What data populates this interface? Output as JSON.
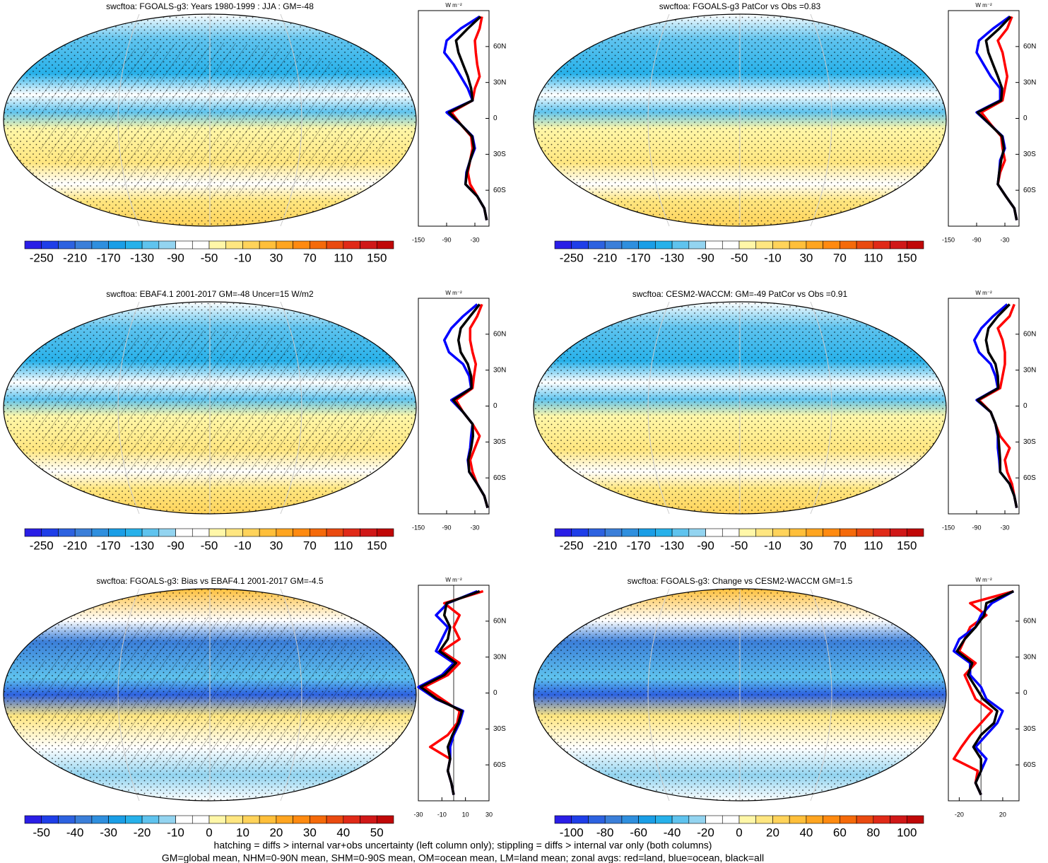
{
  "chart_data": [
    {
      "type": "map",
      "title": "swcftoa: FGOALS-g3: Years 1980-1999 : JJA : GM=-48",
      "colorbar": {
        "lim": [
          -270,
          170
        ],
        "ticks": [
          -250,
          -210,
          -170,
          -130,
          -90,
          -50,
          -10,
          30,
          70,
          110,
          150
        ],
        "colors": [
          "#2a1ee6",
          "#1f3ee8",
          "#2d62e0",
          "#3b7fd9",
          "#2f8fde",
          "#1a9ee6",
          "#27b1ea",
          "#5fc3ee",
          "#93d4f0",
          "#ffffff",
          "#ffffff",
          "#fff7a8",
          "#ffe680",
          "#ffd35a",
          "#ffbf3a",
          "#ffa520",
          "#ff8a10",
          "#f56a0a",
          "#ea4a10",
          "#e02a18",
          "#d01818",
          "#c00808"
        ]
      },
      "profile": {
        "type": "line",
        "xlabel": "W m⁻²",
        "xlim": [
          -150,
          0
        ],
        "xticks": [
          -150,
          -90,
          -30
        ],
        "ylim": [
          -90,
          90
        ],
        "yticks": [
          {
            "value": 60,
            "label": "60N"
          },
          {
            "value": 30,
            "label": "30N"
          },
          0,
          {
            "value": -30,
            "label": "30S"
          },
          {
            "value": -60,
            "label": "60S"
          }
        ],
        "y": [
          -85,
          -75,
          -65,
          -55,
          -45,
          -35,
          -25,
          -15,
          -5,
          5,
          15,
          25,
          35,
          45,
          55,
          65,
          75,
          85
        ],
        "series": [
          {
            "color": "#ff0000",
            "values": [
              -5,
              -10,
              -25,
              -40,
              -45,
              -40,
              -35,
              -38,
              -60,
              -80,
              -35,
              -30,
              -20,
              -25,
              -28,
              -30,
              -20,
              -15
            ]
          },
          {
            "color": "#0000ff",
            "values": [
              -5,
              -10,
              -25,
              -50,
              -48,
              -40,
              -30,
              -35,
              -60,
              -90,
              -35,
              -45,
              -60,
              -75,
              -95,
              -90,
              -60,
              -20
            ]
          },
          {
            "color": "#000000",
            "values": [
              -5,
              -10,
              -25,
              -50,
              -47,
              -40,
              -32,
              -36,
              -60,
              -85,
              -35,
              -38,
              -45,
              -55,
              -65,
              -70,
              -45,
              -18
            ]
          }
        ]
      }
    },
    {
      "type": "map",
      "title": "swcftoa: FGOALS-g3 PatCor vs Obs =0.83",
      "colorbar": {
        "lim": [
          -270,
          170
        ],
        "ticks": [
          -250,
          -210,
          -170,
          -130,
          -90,
          -50,
          -10,
          30,
          70,
          110,
          150
        ],
        "colors": [
          "#2a1ee6",
          "#1f3ee8",
          "#2d62e0",
          "#3b7fd9",
          "#2f8fde",
          "#1a9ee6",
          "#27b1ea",
          "#5fc3ee",
          "#93d4f0",
          "#ffffff",
          "#ffffff",
          "#fff7a8",
          "#ffe680",
          "#ffd35a",
          "#ffbf3a",
          "#ffa520",
          "#ff8a10",
          "#f56a0a",
          "#ea4a10",
          "#e02a18",
          "#d01818",
          "#c00808"
        ]
      },
      "profile": {
        "type": "line",
        "xlabel": "W m⁻²",
        "xlim": [
          -150,
          0
        ],
        "xticks": [
          -150,
          -90,
          -30
        ],
        "ylim": [
          -90,
          90
        ],
        "yticks": [
          {
            "value": 60,
            "label": "60N"
          },
          {
            "value": 30,
            "label": "30N"
          },
          0,
          {
            "value": -30,
            "label": "30S"
          },
          {
            "value": -60,
            "label": "60S"
          }
        ],
        "y": [
          -85,
          -75,
          -65,
          -55,
          -45,
          -35,
          -25,
          -15,
          -5,
          5,
          15,
          25,
          35,
          45,
          55,
          65,
          75,
          85
        ],
        "series": [
          {
            "color": "#ff0000",
            "values": [
              -5,
              -10,
              -28,
              -45,
              -40,
              -30,
              -35,
              -38,
              -60,
              -80,
              -35,
              -30,
              -25,
              -30,
              -35,
              -45,
              -25,
              -15
            ]
          },
          {
            "color": "#0000ff",
            "values": [
              -5,
              -10,
              -28,
              -45,
              -42,
              -40,
              -30,
              -35,
              -62,
              -90,
              -40,
              -40,
              -60,
              -75,
              -90,
              -85,
              -55,
              -20
            ]
          },
          {
            "color": "#000000",
            "values": [
              -5,
              -10,
              -28,
              -45,
              -42,
              -38,
              -32,
              -36,
              -62,
              -88,
              -38,
              -36,
              -45,
              -55,
              -65,
              -70,
              -42,
              -18
            ]
          }
        ]
      }
    },
    {
      "type": "map",
      "title": "swcftoa: EBAF4.1 2001-2017 GM=-48 Uncer=15 W/m2",
      "colorbar": {
        "lim": [
          -270,
          170
        ],
        "ticks": [
          -250,
          -210,
          -170,
          -130,
          -90,
          -50,
          -10,
          30,
          70,
          110,
          150
        ],
        "colors": [
          "#2a1ee6",
          "#1f3ee8",
          "#2d62e0",
          "#3b7fd9",
          "#2f8fde",
          "#1a9ee6",
          "#27b1ea",
          "#5fc3ee",
          "#93d4f0",
          "#ffffff",
          "#ffffff",
          "#fff7a8",
          "#ffe680",
          "#ffd35a",
          "#ffbf3a",
          "#ffa520",
          "#ff8a10",
          "#f56a0a",
          "#ea4a10",
          "#e02a18",
          "#d01818",
          "#c00808"
        ]
      },
      "profile": {
        "type": "line",
        "xlabel": "W m⁻²",
        "xlim": [
          -150,
          0
        ],
        "xticks": [
          -150,
          -90,
          -30
        ],
        "ylim": [
          -90,
          90
        ],
        "yticks": [
          {
            "value": 60,
            "label": "60N"
          },
          {
            "value": 30,
            "label": "30N"
          },
          0,
          {
            "value": -30,
            "label": "30S"
          },
          {
            "value": -60,
            "label": "60S"
          }
        ],
        "y": [
          -85,
          -75,
          -65,
          -55,
          -45,
          -35,
          -25,
          -15,
          -5,
          5,
          15,
          25,
          35,
          45,
          55,
          65,
          75,
          85
        ],
        "series": [
          {
            "color": "#ff0000",
            "values": [
              -3,
              -10,
              -25,
              -35,
              -40,
              -30,
              -20,
              -35,
              -55,
              -70,
              -35,
              -32,
              -28,
              -35,
              -40,
              -40,
              -25,
              -15
            ]
          },
          {
            "color": "#0000ff",
            "values": [
              -3,
              -10,
              -25,
              -42,
              -45,
              -40,
              -38,
              -35,
              -55,
              -80,
              -38,
              -42,
              -55,
              -85,
              -95,
              -80,
              -55,
              -25
            ]
          },
          {
            "color": "#000000",
            "values": [
              -3,
              -10,
              -25,
              -42,
              -44,
              -38,
              -34,
              -35,
              -55,
              -76,
              -37,
              -38,
              -45,
              -60,
              -65,
              -60,
              -40,
              -20
            ]
          }
        ]
      }
    },
    {
      "type": "map",
      "title": "swcftoa: CESM2-WACCM: GM=-49 PatCor vs Obs =0.91",
      "colorbar": {
        "lim": [
          -270,
          170
        ],
        "ticks": [
          -250,
          -210,
          -170,
          -130,
          -90,
          -50,
          -10,
          30,
          70,
          110,
          150
        ],
        "colors": [
          "#2a1ee6",
          "#1f3ee8",
          "#2d62e0",
          "#3b7fd9",
          "#2f8fde",
          "#1a9ee6",
          "#27b1ea",
          "#5fc3ee",
          "#93d4f0",
          "#ffffff",
          "#ffffff",
          "#fff7a8",
          "#ffe680",
          "#ffd35a",
          "#ffbf3a",
          "#ffa520",
          "#ff8a10",
          "#f56a0a",
          "#ea4a10",
          "#e02a18",
          "#d01818",
          "#c00808"
        ]
      },
      "profile": {
        "type": "line",
        "xlabel": "W m⁻²",
        "xlim": [
          -150,
          0
        ],
        "xticks": [
          -150,
          -90,
          -30
        ],
        "ylim": [
          -90,
          90
        ],
        "yticks": [
          {
            "value": 60,
            "label": "60N"
          },
          {
            "value": 30,
            "label": "30N"
          },
          0,
          {
            "value": -30,
            "label": "30S"
          },
          {
            "value": -60,
            "label": "60S"
          }
        ],
        "y": [
          -85,
          -75,
          -65,
          -55,
          -45,
          -35,
          -25,
          -15,
          -5,
          5,
          15,
          25,
          35,
          45,
          55,
          65,
          75,
          85
        ],
        "series": [
          {
            "color": "#ff0000",
            "values": [
              -5,
              -10,
              -15,
              -25,
              -30,
              -20,
              -40,
              -50,
              -60,
              -85,
              -40,
              -35,
              -30,
              -30,
              -35,
              -45,
              -20,
              -10
            ]
          },
          {
            "color": "#0000ff",
            "values": [
              -5,
              -10,
              -20,
              -40,
              -42,
              -45,
              -45,
              -50,
              -60,
              -90,
              -45,
              -50,
              -60,
              -85,
              -95,
              -80,
              -55,
              -25
            ]
          },
          {
            "color": "#000000",
            "values": [
              -5,
              -10,
              -20,
              -40,
              -40,
              -42,
              -44,
              -50,
              -60,
              -88,
              -44,
              -45,
              -50,
              -65,
              -70,
              -65,
              -45,
              -20
            ]
          }
        ]
      }
    },
    {
      "type": "map",
      "title": "swcftoa: FGOALS-g3: Bias vs EBAF4.1 2001-2017 GM=-4.5",
      "colorbar": {
        "lim": [
          -55,
          55
        ],
        "ticks": [
          -50,
          -40,
          -30,
          -20,
          -10,
          0,
          10,
          20,
          30,
          40,
          50
        ],
        "colors": [
          "#2a1ee6",
          "#1f3ee8",
          "#2d62e0",
          "#3b7fd9",
          "#2f8fde",
          "#1a9ee6",
          "#27b1ea",
          "#5fc3ee",
          "#93d4f0",
          "#ffffff",
          "#ffffff",
          "#fff7a8",
          "#ffe680",
          "#ffd35a",
          "#ffbf3a",
          "#ffa520",
          "#ff8a10",
          "#f56a0a",
          "#ea4a10",
          "#e02a18",
          "#d01818",
          "#c00808"
        ]
      },
      "profile": {
        "type": "line",
        "xlabel": "W m⁻²",
        "xlim": [
          -30,
          30
        ],
        "xticks": [
          -30,
          -10,
          10,
          30
        ],
        "reference_line": 0,
        "ylim": [
          -90,
          90
        ],
        "yticks": [
          {
            "value": 60,
            "label": "60N"
          },
          {
            "value": 30,
            "label": "30N"
          },
          0,
          {
            "value": -30,
            "label": "30S"
          },
          {
            "value": -60,
            "label": "60S"
          }
        ],
        "y": [
          -85,
          -75,
          -65,
          -55,
          -45,
          -35,
          -25,
          -15,
          -5,
          5,
          15,
          25,
          35,
          45,
          55,
          65,
          75,
          85
        ],
        "series": [
          {
            "color": "#ff0000",
            "values": [
              0,
              -2,
              -5,
              -3,
              -20,
              -5,
              3,
              5,
              -10,
              -25,
              -5,
              5,
              -10,
              5,
              0,
              5,
              -8,
              25
            ]
          },
          {
            "color": "#0000ff",
            "values": [
              0,
              -2,
              -5,
              -3,
              -3,
              0,
              5,
              8,
              -15,
              -30,
              -10,
              0,
              -15,
              -10,
              -5,
              -15,
              -5,
              20
            ]
          },
          {
            "color": "#000000",
            "values": [
              0,
              -2,
              -5,
              -3,
              -5,
              -1,
              4,
              7,
              -14,
              -28,
              -8,
              2,
              -12,
              -5,
              -3,
              -8,
              -6,
              22
            ]
          }
        ]
      }
    },
    {
      "type": "map",
      "title": "swcftoa: FGOALS-g3: Change vs CESM2-WACCM GM=1.5",
      "colorbar": {
        "lim": [
          -110,
          110
        ],
        "ticks": [
          -100,
          -80,
          -60,
          -40,
          -20,
          0,
          20,
          40,
          60,
          80,
          100
        ],
        "colors": [
          "#2a1ee6",
          "#1f3ee8",
          "#2d62e0",
          "#3b7fd9",
          "#2f8fde",
          "#1a9ee6",
          "#27b1ea",
          "#5fc3ee",
          "#93d4f0",
          "#ffffff",
          "#ffffff",
          "#fff7a8",
          "#ffe680",
          "#ffd35a",
          "#ffbf3a",
          "#ffa520",
          "#ff8a10",
          "#f56a0a",
          "#ea4a10",
          "#e02a18",
          "#d01818",
          "#c00808"
        ]
      },
      "profile": {
        "type": "line",
        "xlabel": "W m⁻²",
        "xlim": [
          -30,
          35
        ],
        "xticks": [
          -20,
          20
        ],
        "reference_line": 0,
        "ylim": [
          -90,
          90
        ],
        "yticks": [
          {
            "value": 60,
            "label": "60N"
          },
          {
            "value": 30,
            "label": "30N"
          },
          0,
          {
            "value": -30,
            "label": "30S"
          },
          {
            "value": -60,
            "label": "60S"
          }
        ],
        "y": [
          -85,
          -75,
          -65,
          -55,
          -45,
          -35,
          -25,
          -15,
          -5,
          5,
          15,
          25,
          35,
          45,
          55,
          65,
          75,
          85
        ],
        "series": [
          {
            "color": "#ff0000",
            "values": [
              0,
              -5,
              -3,
              -25,
              -18,
              -10,
              0,
              10,
              -5,
              -10,
              -15,
              -5,
              -20,
              -15,
              -10,
              5,
              -10,
              30
            ]
          },
          {
            "color": "#0000ff",
            "values": [
              0,
              -5,
              0,
              5,
              -5,
              5,
              15,
              20,
              5,
              0,
              -10,
              -10,
              -25,
              -20,
              -5,
              0,
              10,
              30
            ]
          },
          {
            "color": "#000000",
            "values": [
              0,
              -5,
              0,
              0,
              -7,
              0,
              12,
              15,
              2,
              -5,
              -12,
              -8,
              -22,
              -15,
              -5,
              3,
              5,
              30
            ]
          }
        ]
      }
    }
  ],
  "notes": [
    "hatching = diffs > internal var+obs uncertainty (left column only); stippling = diffs > internal var only (both columns)",
    "GM=global mean, NHM=0-90N mean, SHM=0-90S mean, OM=ocean mean, LM=land mean; zonal avgs: red=land, blue=ocean, black=all"
  ]
}
